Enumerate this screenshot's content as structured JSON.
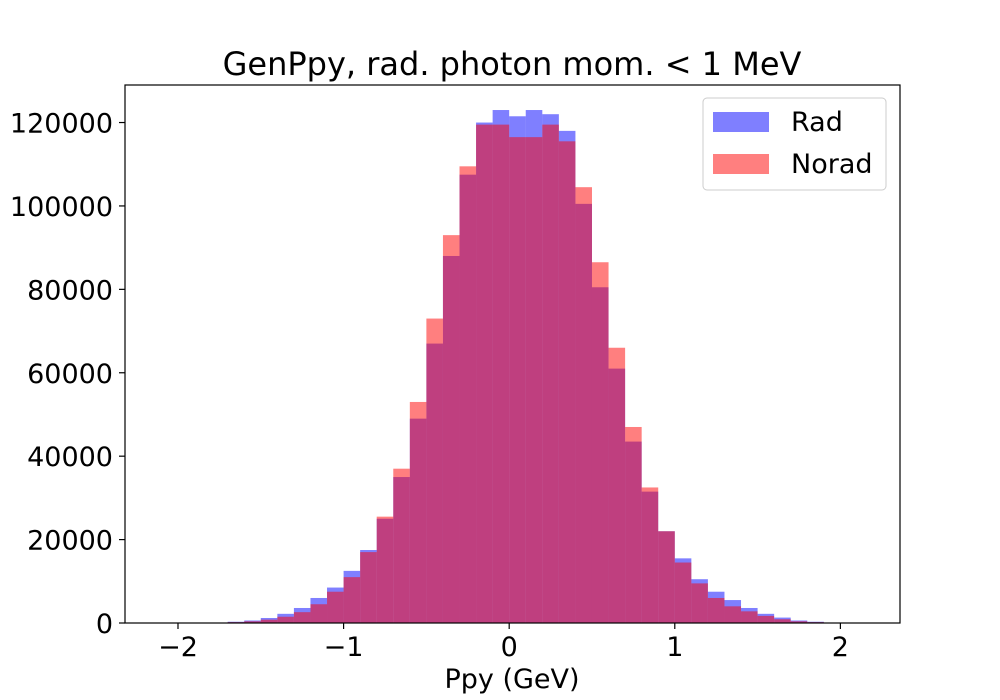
{
  "chart_data": {
    "type": "bar",
    "title": "GenPpy, rad. photon mom. < 1 MeV",
    "xlabel": "Ppy (GeV)",
    "ylabel": "",
    "xlim": [
      -2.32,
      2.36
    ],
    "ylim": [
      0,
      129000
    ],
    "xticks": [
      -2,
      -1,
      0,
      1,
      2
    ],
    "xtick_labels": [
      "−2",
      "−1",
      "0",
      "1",
      "2"
    ],
    "yticks": [
      0,
      20000,
      40000,
      60000,
      80000,
      100000,
      120000
    ],
    "ytick_labels": [
      "0",
      "20000",
      "40000",
      "60000",
      "80000",
      "100000",
      "120000"
    ],
    "grid": false,
    "legend_position": "top-right",
    "bin_edges": [
      -2.1,
      -2.0,
      -1.9,
      -1.8,
      -1.7,
      -1.6,
      -1.5,
      -1.4,
      -1.3,
      -1.2,
      -1.1,
      -1.0,
      -0.9,
      -0.8,
      -0.7,
      -0.6,
      -0.5,
      -0.4,
      -0.3,
      -0.2,
      -0.1,
      0.0,
      0.1,
      0.2,
      0.3,
      0.4,
      0.5,
      0.6,
      0.7,
      0.8,
      0.9,
      1.0,
      1.1,
      1.2,
      1.3,
      1.4,
      1.5,
      1.6,
      1.7,
      1.8,
      1.9,
      2.0,
      2.1
    ],
    "series": [
      {
        "name": "Rad",
        "color": "#0000ff",
        "opacity": 0.5,
        "values": [
          0,
          0,
          0,
          100,
          300,
          600,
          1200,
          2200,
          3600,
          6000,
          8500,
          12500,
          17500,
          25000,
          35000,
          49000,
          67000,
          88000,
          107500,
          120000,
          123000,
          121500,
          123000,
          122000,
          118000,
          100500,
          80500,
          61000,
          43500,
          31500,
          22000,
          15500,
          10500,
          7500,
          5500,
          3600,
          2200,
          1300,
          600,
          300,
          100,
          0
        ]
      },
      {
        "name": "Norad",
        "color": "#ff0000",
        "opacity": 0.5,
        "values": [
          0,
          0,
          0,
          100,
          200,
          400,
          800,
          1500,
          2600,
          4500,
          7500,
          11000,
          17000,
          25500,
          37000,
          53000,
          73000,
          93000,
          109500,
          119500,
          119500,
          116500,
          116500,
          119500,
          115500,
          104500,
          86500,
          66000,
          47000,
          32500,
          22000,
          14500,
          9500,
          6000,
          4000,
          2800,
          1700,
          900,
          400,
          200,
          100,
          0
        ]
      }
    ]
  }
}
